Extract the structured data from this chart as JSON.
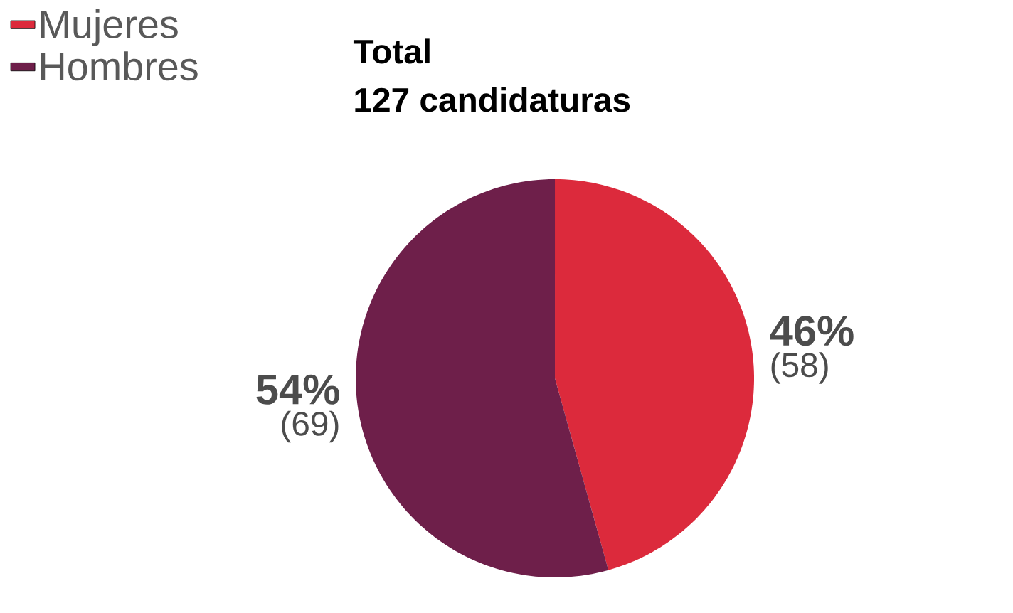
{
  "chart_data": {
    "type": "pie",
    "title": "Total",
    "subtitle": "127 candidaturas",
    "categories": [
      "Mujeres",
      "Hombres"
    ],
    "values": [
      58,
      69
    ],
    "colors": [
      "#dc2a3c",
      "#6e1f4a"
    ],
    "value_labels": [
      "(58)",
      "(69)"
    ],
    "annotations": [
      "46%",
      "54%"
    ],
    "legend": "top left"
  }
}
